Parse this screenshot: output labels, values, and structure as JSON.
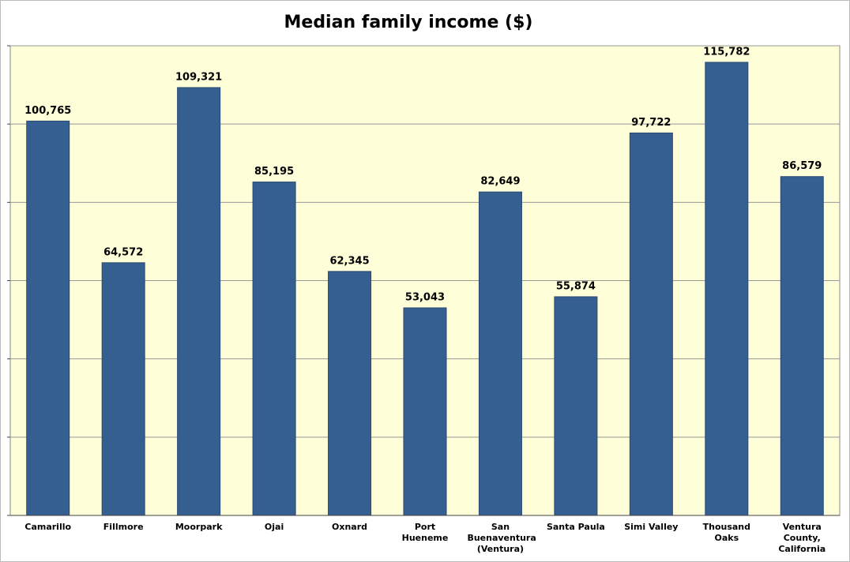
{
  "chart_data": {
    "type": "bar",
    "title": "Median family income ($)",
    "categories": [
      "Camarillo",
      "Fillmore",
      "Moorpark",
      "Ojai",
      "Oxnard",
      "Port Hueneme",
      "San Buenaventura (Ventura)",
      "Santa Paula",
      "Simi Valley",
      "Thousand Oaks",
      "Ventura County, California"
    ],
    "values": [
      100765,
      64572,
      109321,
      85195,
      62345,
      53043,
      82649,
      55874,
      97722,
      115782,
      86579
    ],
    "value_labels": [
      "100,765",
      "64,572",
      "109,321",
      "85,195",
      "62,345",
      "53,043",
      "82,649",
      "55,874",
      "97,722",
      "115,782",
      "86,579"
    ],
    "color": "#355f91",
    "ylim": [
      0,
      120000
    ],
    "yticks": [
      0,
      20000,
      40000,
      60000,
      80000,
      100000,
      120000
    ],
    "grid": true
  }
}
